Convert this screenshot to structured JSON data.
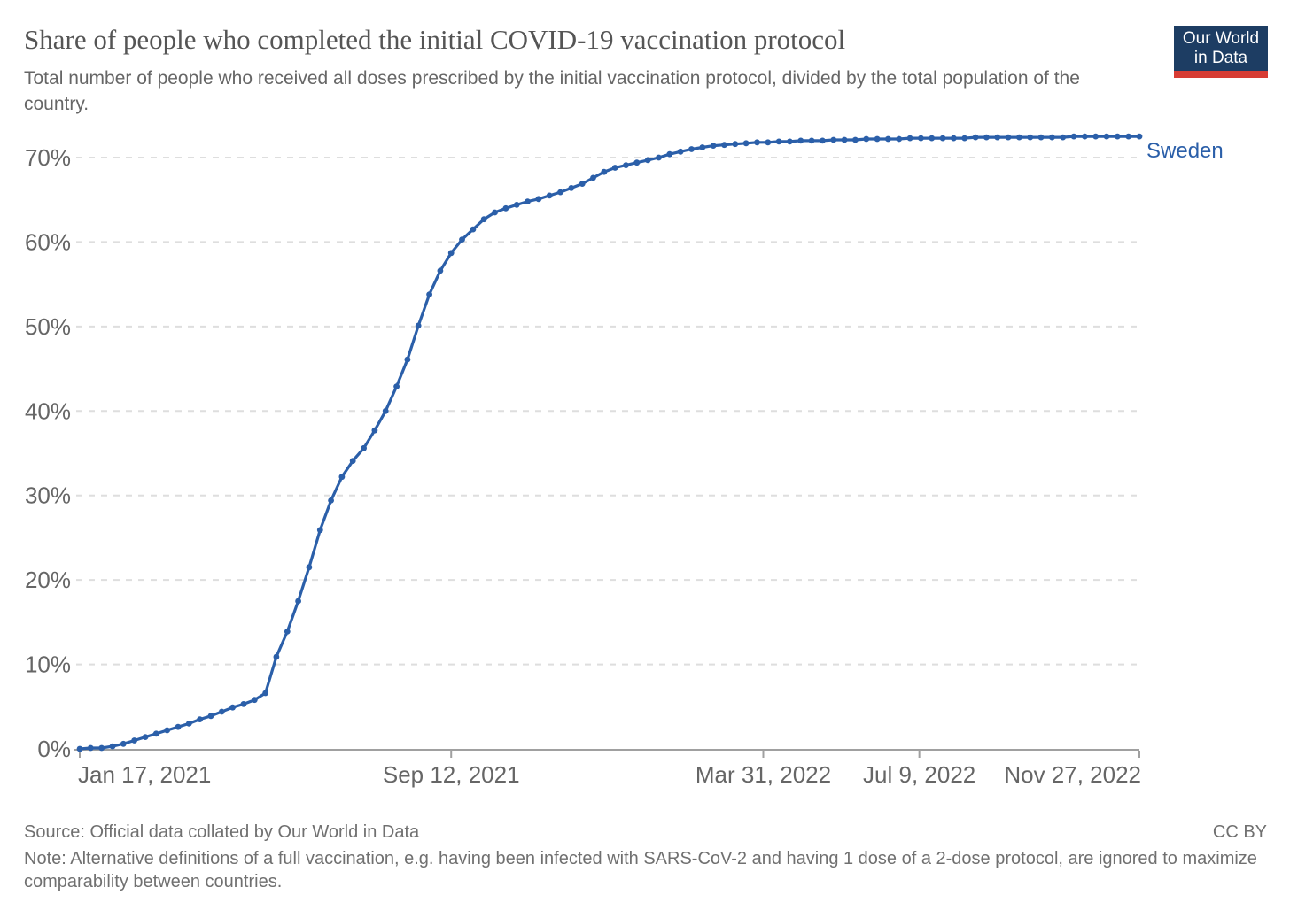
{
  "header": {
    "title": "Share of people who completed the initial COVID-19 vaccination protocol",
    "subtitle": "Total number of people who received all doses prescribed by the initial vaccination protocol, divided by the total population of the country.",
    "logo": {
      "line1": "Our World",
      "line2": "in Data",
      "bg_color": "#1d3d63",
      "bar_color": "#d73c34"
    }
  },
  "chart_data": {
    "type": "line",
    "title": "Share of people who completed the initial COVID-19 vaccination protocol",
    "xlabel": "",
    "ylabel": "",
    "grid": "horizontal-dashed",
    "ylim": [
      0,
      73
    ],
    "y_ticks": [
      0,
      10,
      20,
      30,
      40,
      50,
      60,
      70
    ],
    "y_tick_suffix": "%",
    "x_ticks": [
      {
        "date": "2021-01-17",
        "label": "Jan 17, 2021"
      },
      {
        "date": "2021-09-12",
        "label": "Sep 12, 2021"
      },
      {
        "date": "2022-03-31",
        "label": "Mar 31, 2022"
      },
      {
        "date": "2022-07-09",
        "label": "Jul 9, 2022"
      },
      {
        "date": "2022-11-27",
        "label": "Nov 27, 2022"
      }
    ],
    "legend_position": "end-of-line-label",
    "series": [
      {
        "name": "Sweden",
        "color": "#2b5fa9",
        "unit": "%",
        "dates": [
          "2021-01-17",
          "2021-01-24",
          "2021-01-31",
          "2021-02-07",
          "2021-02-14",
          "2021-02-21",
          "2021-02-28",
          "2021-03-07",
          "2021-03-14",
          "2021-03-21",
          "2021-03-28",
          "2021-04-04",
          "2021-04-11",
          "2021-04-18",
          "2021-04-25",
          "2021-05-02",
          "2021-05-09",
          "2021-05-16",
          "2021-05-23",
          "2021-05-30",
          "2021-06-06",
          "2021-06-13",
          "2021-06-20",
          "2021-06-27",
          "2021-07-04",
          "2021-07-11",
          "2021-07-18",
          "2021-07-25",
          "2021-08-01",
          "2021-08-08",
          "2021-08-15",
          "2021-08-22",
          "2021-08-29",
          "2021-09-05",
          "2021-09-12",
          "2021-09-19",
          "2021-09-26",
          "2021-10-03",
          "2021-10-10",
          "2021-10-17",
          "2021-10-24",
          "2021-10-31",
          "2021-11-07",
          "2021-11-14",
          "2021-11-21",
          "2021-11-28",
          "2021-12-05",
          "2021-12-12",
          "2021-12-19",
          "2021-12-26",
          "2022-01-02",
          "2022-01-09",
          "2022-01-16",
          "2022-01-23",
          "2022-01-30",
          "2022-02-06",
          "2022-02-13",
          "2022-02-20",
          "2022-02-27",
          "2022-03-06",
          "2022-03-13",
          "2022-03-20",
          "2022-03-27",
          "2022-04-03",
          "2022-04-10",
          "2022-04-17",
          "2022-04-24",
          "2022-05-01",
          "2022-05-08",
          "2022-05-15",
          "2022-05-22",
          "2022-05-29",
          "2022-06-05",
          "2022-06-12",
          "2022-06-19",
          "2022-06-26",
          "2022-07-03",
          "2022-07-10",
          "2022-07-17",
          "2022-07-24",
          "2022-07-31",
          "2022-08-07",
          "2022-08-14",
          "2022-08-21",
          "2022-08-28",
          "2022-09-04",
          "2022-09-11",
          "2022-09-18",
          "2022-09-25",
          "2022-10-02",
          "2022-10-09",
          "2022-10-16",
          "2022-10-23",
          "2022-10-30",
          "2022-11-06",
          "2022-11-13",
          "2022-11-20",
          "2022-11-27"
        ],
        "values": [
          0.0,
          0.1,
          0.1,
          0.3,
          0.6,
          1.0,
          1.4,
          1.8,
          2.2,
          2.6,
          3.0,
          3.5,
          3.9,
          4.4,
          4.9,
          5.3,
          5.8,
          6.6,
          10.9,
          13.9,
          17.5,
          21.5,
          25.9,
          29.4,
          32.2,
          34.1,
          35.6,
          37.7,
          40.0,
          42.9,
          46.1,
          50.1,
          53.8,
          56.6,
          58.7,
          60.3,
          61.5,
          62.7,
          63.5,
          64.0,
          64.4,
          64.8,
          65.1,
          65.5,
          65.9,
          66.4,
          66.9,
          67.6,
          68.3,
          68.8,
          69.1,
          69.4,
          69.7,
          70.0,
          70.4,
          70.7,
          71.0,
          71.2,
          71.4,
          71.5,
          71.6,
          71.7,
          71.8,
          71.8,
          71.9,
          71.9,
          72.0,
          72.0,
          72.0,
          72.1,
          72.1,
          72.1,
          72.2,
          72.2,
          72.2,
          72.2,
          72.3,
          72.3,
          72.3,
          72.3,
          72.3,
          72.3,
          72.4,
          72.4,
          72.4,
          72.4,
          72.4,
          72.4,
          72.4,
          72.4,
          72.4,
          72.5,
          72.5,
          72.5,
          72.5,
          72.5,
          72.5,
          72.5
        ]
      }
    ]
  },
  "end_label": "Sweden",
  "footer": {
    "source": "Source: Official data collated by Our World in Data",
    "license": "CC BY",
    "note": "Note: Alternative definitions of a full vaccination, e.g. having been infected with SARS-CoV-2 and having 1 dose of a 2-dose protocol, are ignored to maximize comparability between countries."
  },
  "style_colors": {
    "line": "#2b5fa9",
    "gridline": "#dedede",
    "axis": "#a0a0a0",
    "tick_label": "#666666",
    "title": "#555555",
    "subtitle": "#666666",
    "footer": "#707070"
  }
}
